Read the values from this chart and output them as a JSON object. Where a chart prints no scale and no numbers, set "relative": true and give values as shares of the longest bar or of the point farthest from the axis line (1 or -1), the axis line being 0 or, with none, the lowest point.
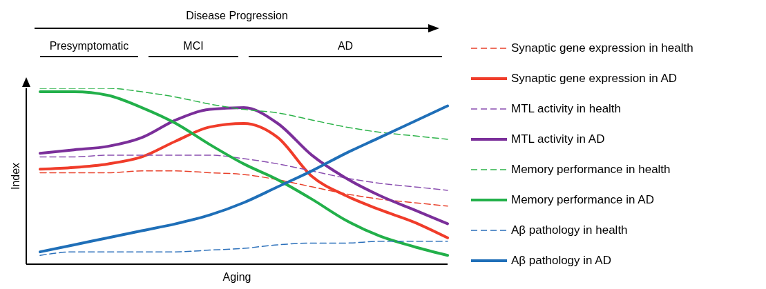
{
  "chart_data": {
    "type": "line",
    "relative": true,
    "xlabel": "Aging",
    "ylabel": "Index",
    "tick_labels": false,
    "legend": "right",
    "grid": false,
    "marker": "none",
    "annotations": [
      "Disease Progression",
      "Presymptomatic",
      "MCI",
      "AD"
    ],
    "categories": [
      null,
      null,
      null,
      null,
      null,
      null,
      null,
      null,
      null,
      null,
      null,
      null,
      null
    ],
    "series": [
      {
        "name": "Synaptic gene expression in health",
        "color": "#e8402a",
        "line_style": "dashed",
        "values": [
          0.52,
          0.52,
          0.52,
          0.53,
          0.53,
          0.52,
          0.51,
          0.48,
          0.44,
          0.4,
          0.37,
          0.35,
          0.33
        ]
      },
      {
        "name": "Synaptic gene expression in AD",
        "color": "#f03c2a",
        "line_style": "solid",
        "values": [
          0.54,
          0.55,
          0.57,
          0.61,
          0.7,
          0.78,
          0.8,
          0.72,
          0.5,
          0.39,
          0.31,
          0.24,
          0.15
        ]
      },
      {
        "name": "MTL activity in health",
        "color": "#8a4fb0",
        "line_style": "dashed",
        "values": [
          0.61,
          0.61,
          0.62,
          0.62,
          0.62,
          0.62,
          0.6,
          0.57,
          0.53,
          0.49,
          0.46,
          0.44,
          0.42
        ]
      },
      {
        "name": "MTL activity in AD",
        "color": "#7b2f9a",
        "line_style": "solid",
        "values": [
          0.63,
          0.65,
          0.67,
          0.72,
          0.82,
          0.88,
          0.89,
          0.8,
          0.62,
          0.49,
          0.39,
          0.31,
          0.23
        ]
      },
      {
        "name": "Memory performance in health",
        "color": "#2db34a",
        "line_style": "dashed",
        "values": [
          1.0,
          1.0,
          1.0,
          0.98,
          0.95,
          0.91,
          0.88,
          0.86,
          0.82,
          0.78,
          0.75,
          0.73,
          0.71
        ]
      },
      {
        "name": "Memory performance in AD",
        "color": "#22b04a",
        "line_style": "solid",
        "values": [
          0.98,
          0.98,
          0.96,
          0.89,
          0.8,
          0.68,
          0.57,
          0.48,
          0.37,
          0.25,
          0.16,
          0.1,
          0.05
        ]
      },
      {
        "name": "Aβ pathology in health",
        "color": "#2a6fba",
        "line_style": "dashed",
        "values": [
          0.05,
          0.07,
          0.07,
          0.07,
          0.07,
          0.08,
          0.09,
          0.11,
          0.12,
          0.12,
          0.13,
          0.13,
          0.13
        ]
      },
      {
        "name": "Aβ pathology in AD",
        "color": "#1f6fb8",
        "line_style": "solid",
        "values": [
          0.07,
          0.11,
          0.15,
          0.19,
          0.23,
          0.28,
          0.35,
          0.44,
          0.53,
          0.63,
          0.72,
          0.81,
          0.9
        ]
      }
    ]
  }
}
